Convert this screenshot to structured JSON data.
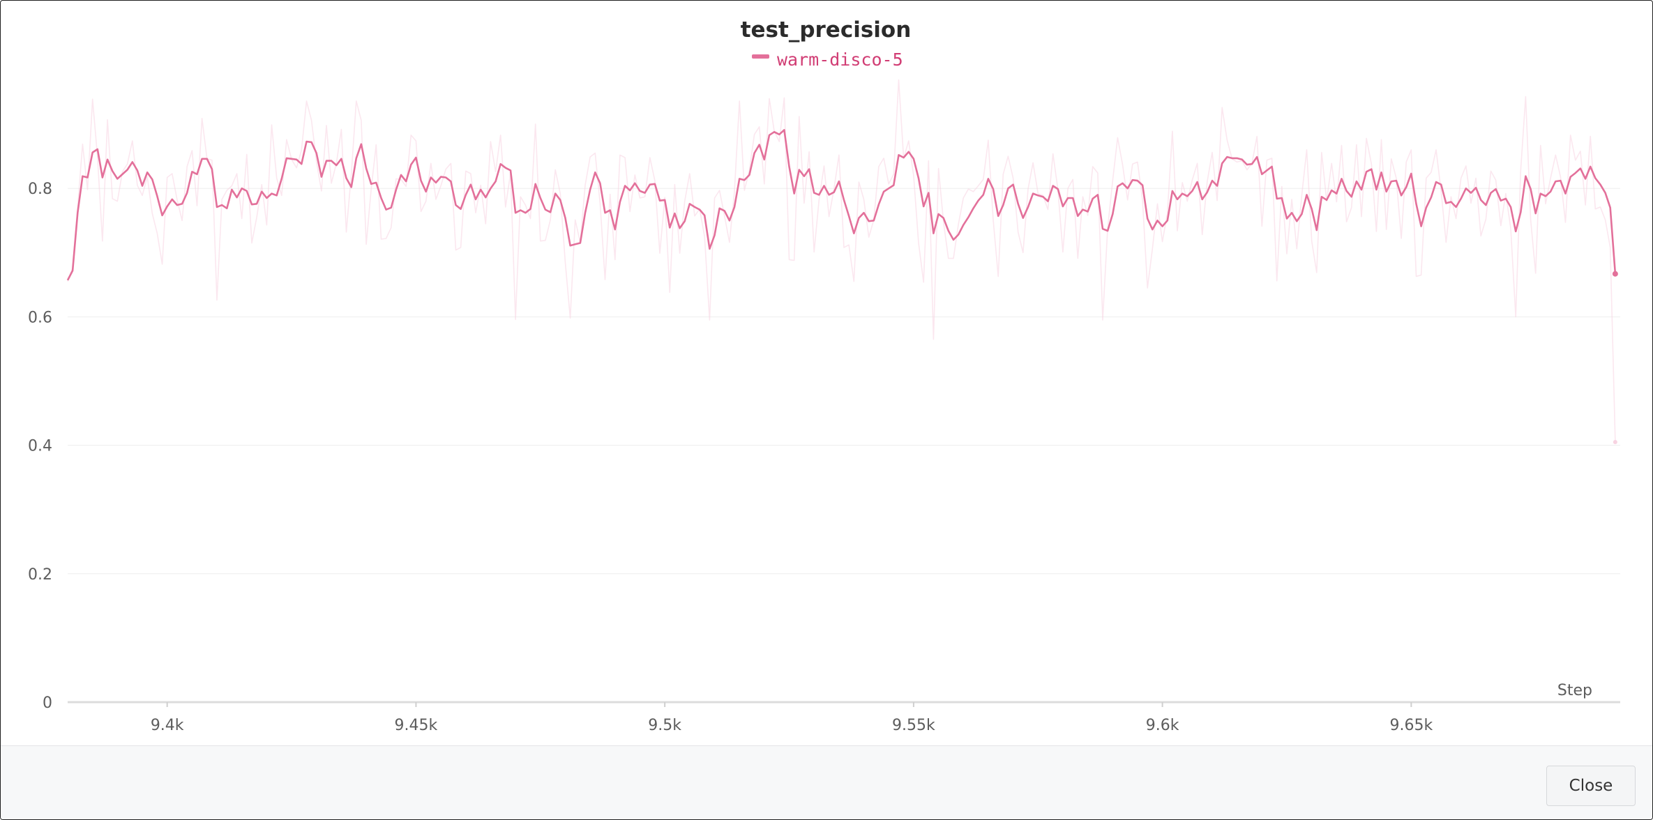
{
  "dialog": {
    "close_label": "Close"
  },
  "colors": {
    "series": "#e3709a",
    "series_raw": "#f7d3e1",
    "legend_text": "#d13d74",
    "grid": "#eeeeee",
    "axis": "#dcdcdc"
  },
  "chart_data": {
    "type": "line",
    "title": "test_precision",
    "xlabel": "Step",
    "ylabel": "",
    "xlim": [
      9380,
      9692
    ],
    "ylim": [
      0,
      1.0
    ],
    "x_ticks": [
      9400,
      9450,
      9500,
      9550,
      9600,
      9650
    ],
    "x_tick_labels": [
      "9.4k",
      "9.45k",
      "9.5k",
      "9.55k",
      "9.6k",
      "9.65k"
    ],
    "y_ticks": [
      0,
      0.2,
      0.4,
      0.6,
      0.8
    ],
    "y_tick_labels": [
      "0",
      "0.2",
      "0.4",
      "0.6",
      "0.8"
    ],
    "grid": true,
    "legend_position": "top-center",
    "x_start": 9380,
    "x_step": 1,
    "series": [
      {
        "name": "warm-disco-5",
        "values": [
          0.657,
          0.672,
          0.762,
          0.819,
          0.817,
          0.856,
          0.861,
          0.817,
          0.845,
          0.827,
          0.815,
          0.822,
          0.829,
          0.841,
          0.828,
          0.804,
          0.825,
          0.814,
          0.788,
          0.758,
          0.772,
          0.783,
          0.774,
          0.776,
          0.793,
          0.826,
          0.822,
          0.846,
          0.846,
          0.83,
          0.771,
          0.774,
          0.769,
          0.798,
          0.786,
          0.8,
          0.796,
          0.775,
          0.776,
          0.795,
          0.785,
          0.792,
          0.789,
          0.815,
          0.847,
          0.846,
          0.845,
          0.838,
          0.873,
          0.872,
          0.855,
          0.818,
          0.843,
          0.843,
          0.836,
          0.846,
          0.816,
          0.802,
          0.847,
          0.869,
          0.831,
          0.807,
          0.809,
          0.785,
          0.767,
          0.77,
          0.798,
          0.821,
          0.811,
          0.837,
          0.848,
          0.812,
          0.795,
          0.817,
          0.809,
          0.818,
          0.817,
          0.811,
          0.774,
          0.768,
          0.79,
          0.806,
          0.783,
          0.798,
          0.786,
          0.8,
          0.811,
          0.838,
          0.832,
          0.828,
          0.762,
          0.766,
          0.762,
          0.768,
          0.807,
          0.785,
          0.767,
          0.763,
          0.792,
          0.782,
          0.754,
          0.711,
          0.713,
          0.715,
          0.762,
          0.798,
          0.825,
          0.808,
          0.762,
          0.766,
          0.736,
          0.779,
          0.804,
          0.797,
          0.808,
          0.796,
          0.793,
          0.806,
          0.807,
          0.781,
          0.782,
          0.739,
          0.761,
          0.738,
          0.749,
          0.776,
          0.771,
          0.767,
          0.758,
          0.706,
          0.727,
          0.769,
          0.765,
          0.75,
          0.771,
          0.815,
          0.813,
          0.821,
          0.855,
          0.868,
          0.845,
          0.883,
          0.888,
          0.884,
          0.891,
          0.834,
          0.792,
          0.829,
          0.819,
          0.83,
          0.793,
          0.79,
          0.804,
          0.79,
          0.794,
          0.811,
          0.782,
          0.757,
          0.73,
          0.754,
          0.762,
          0.749,
          0.75,
          0.775,
          0.795,
          0.8,
          0.805,
          0.852,
          0.848,
          0.857,
          0.846,
          0.816,
          0.772,
          0.793,
          0.73,
          0.76,
          0.754,
          0.734,
          0.72,
          0.728,
          0.743,
          0.755,
          0.769,
          0.781,
          0.79,
          0.815,
          0.799,
          0.757,
          0.774,
          0.8,
          0.806,
          0.776,
          0.754,
          0.771,
          0.792,
          0.789,
          0.787,
          0.78,
          0.804,
          0.799,
          0.772,
          0.785,
          0.785,
          0.757,
          0.767,
          0.764,
          0.784,
          0.79,
          0.737,
          0.734,
          0.76,
          0.803,
          0.808,
          0.8,
          0.813,
          0.812,
          0.805,
          0.753,
          0.736,
          0.75,
          0.741,
          0.75,
          0.796,
          0.783,
          0.792,
          0.788,
          0.796,
          0.81,
          0.783,
          0.794,
          0.812,
          0.804,
          0.839,
          0.849,
          0.847,
          0.847,
          0.845,
          0.837,
          0.838,
          0.849,
          0.822,
          0.828,
          0.834,
          0.784,
          0.785,
          0.753,
          0.762,
          0.749,
          0.76,
          0.79,
          0.768,
          0.735,
          0.787,
          0.782,
          0.797,
          0.792,
          0.815,
          0.796,
          0.787,
          0.811,
          0.798,
          0.826,
          0.83,
          0.798,
          0.825,
          0.795,
          0.811,
          0.812,
          0.789,
          0.802,
          0.823,
          0.776,
          0.741,
          0.77,
          0.786,
          0.81,
          0.806,
          0.777,
          0.779,
          0.771,
          0.784,
          0.8,
          0.793,
          0.801,
          0.782,
          0.774,
          0.793,
          0.799,
          0.781,
          0.784,
          0.771,
          0.733,
          0.763,
          0.819,
          0.799,
          0.761,
          0.792,
          0.788,
          0.795,
          0.811,
          0.812,
          0.792,
          0.818,
          0.824,
          0.831,
          0.815,
          0.834,
          0.816,
          0.806,
          0.793,
          0.77,
          0.667
        ]
      }
    ],
    "raw_values": [
      0.655,
      0.676,
      0.77,
      0.869,
      0.798,
      0.939,
      0.849,
      0.718,
      0.907,
      0.784,
      0.78,
      0.826,
      0.838,
      0.874,
      0.805,
      0.789,
      0.818,
      0.761,
      0.73,
      0.682,
      0.817,
      0.823,
      0.782,
      0.75,
      0.834,
      0.859,
      0.773,
      0.909,
      0.846,
      0.844,
      0.626,
      0.783,
      0.797,
      0.804,
      0.823,
      0.753,
      0.853,
      0.715,
      0.755,
      0.806,
      0.743,
      0.899,
      0.816,
      0.789,
      0.876,
      0.845,
      0.832,
      0.86,
      0.936,
      0.906,
      0.842,
      0.796,
      0.898,
      0.808,
      0.839,
      0.892,
      0.732,
      0.822,
      0.936,
      0.906,
      0.713,
      0.799,
      0.868,
      0.721,
      0.722,
      0.739,
      0.815,
      0.814,
      0.803,
      0.883,
      0.874,
      0.764,
      0.78,
      0.839,
      0.783,
      0.804,
      0.83,
      0.839,
      0.704,
      0.708,
      0.827,
      0.823,
      0.762,
      0.805,
      0.745,
      0.873,
      0.826,
      0.883,
      0.771,
      0.824,
      0.596,
      0.787,
      0.774,
      0.753,
      0.9,
      0.718,
      0.719,
      0.751,
      0.829,
      0.792,
      0.684,
      0.598,
      0.751,
      0.716,
      0.805,
      0.849,
      0.855,
      0.777,
      0.658,
      0.791,
      0.689,
      0.852,
      0.848,
      0.764,
      0.821,
      0.785,
      0.787,
      0.848,
      0.812,
      0.699,
      0.786,
      0.638,
      0.806,
      0.699,
      0.78,
      0.823,
      0.757,
      0.768,
      0.725,
      0.595,
      0.785,
      0.797,
      0.757,
      0.716,
      0.795,
      0.936,
      0.797,
      0.828,
      0.884,
      0.896,
      0.807,
      0.94,
      0.889,
      0.873,
      0.941,
      0.689,
      0.688,
      0.912,
      0.777,
      0.857,
      0.701,
      0.782,
      0.835,
      0.756,
      0.799,
      0.852,
      0.708,
      0.712,
      0.655,
      0.81,
      0.783,
      0.724,
      0.751,
      0.834,
      0.847,
      0.807,
      0.822,
      0.969,
      0.847,
      0.874,
      0.82,
      0.715,
      0.654,
      0.843,
      0.565,
      0.831,
      0.748,
      0.691,
      0.691,
      0.744,
      0.785,
      0.799,
      0.795,
      0.804,
      0.814,
      0.875,
      0.751,
      0.663,
      0.822,
      0.85,
      0.816,
      0.732,
      0.7,
      0.799,
      0.84,
      0.792,
      0.789,
      0.767,
      0.854,
      0.798,
      0.701,
      0.8,
      0.814,
      0.691,
      0.787,
      0.758,
      0.834,
      0.824,
      0.595,
      0.738,
      0.812,
      0.879,
      0.837,
      0.782,
      0.838,
      0.841,
      0.782,
      0.645,
      0.706,
      0.776,
      0.717,
      0.762,
      0.889,
      0.734,
      0.809,
      0.78,
      0.813,
      0.839,
      0.728,
      0.81,
      0.856,
      0.781,
      0.926,
      0.875,
      0.846,
      0.841,
      0.843,
      0.829,
      0.839,
      0.881,
      0.741,
      0.844,
      0.847,
      0.656,
      0.803,
      0.698,
      0.783,
      0.706,
      0.789,
      0.86,
      0.718,
      0.669,
      0.856,
      0.78,
      0.839,
      0.779,
      0.867,
      0.748,
      0.77,
      0.868,
      0.756,
      0.878,
      0.838,
      0.733,
      0.876,
      0.736,
      0.846,
      0.816,
      0.722,
      0.841,
      0.86,
      0.663,
      0.665,
      0.816,
      0.825,
      0.86,
      0.796,
      0.716,
      0.787,
      0.753,
      0.816,
      0.835,
      0.777,
      0.816,
      0.726,
      0.752,
      0.827,
      0.813,
      0.742,
      0.792,
      0.738,
      0.6,
      0.828,
      0.943,
      0.751,
      0.668,
      0.867,
      0.776,
      0.816,
      0.852,
      0.818,
      0.747,
      0.883,
      0.844,
      0.858,
      0.774,
      0.881,
      0.768,
      0.771,
      0.751,
      0.708,
      0.405
    ]
  }
}
